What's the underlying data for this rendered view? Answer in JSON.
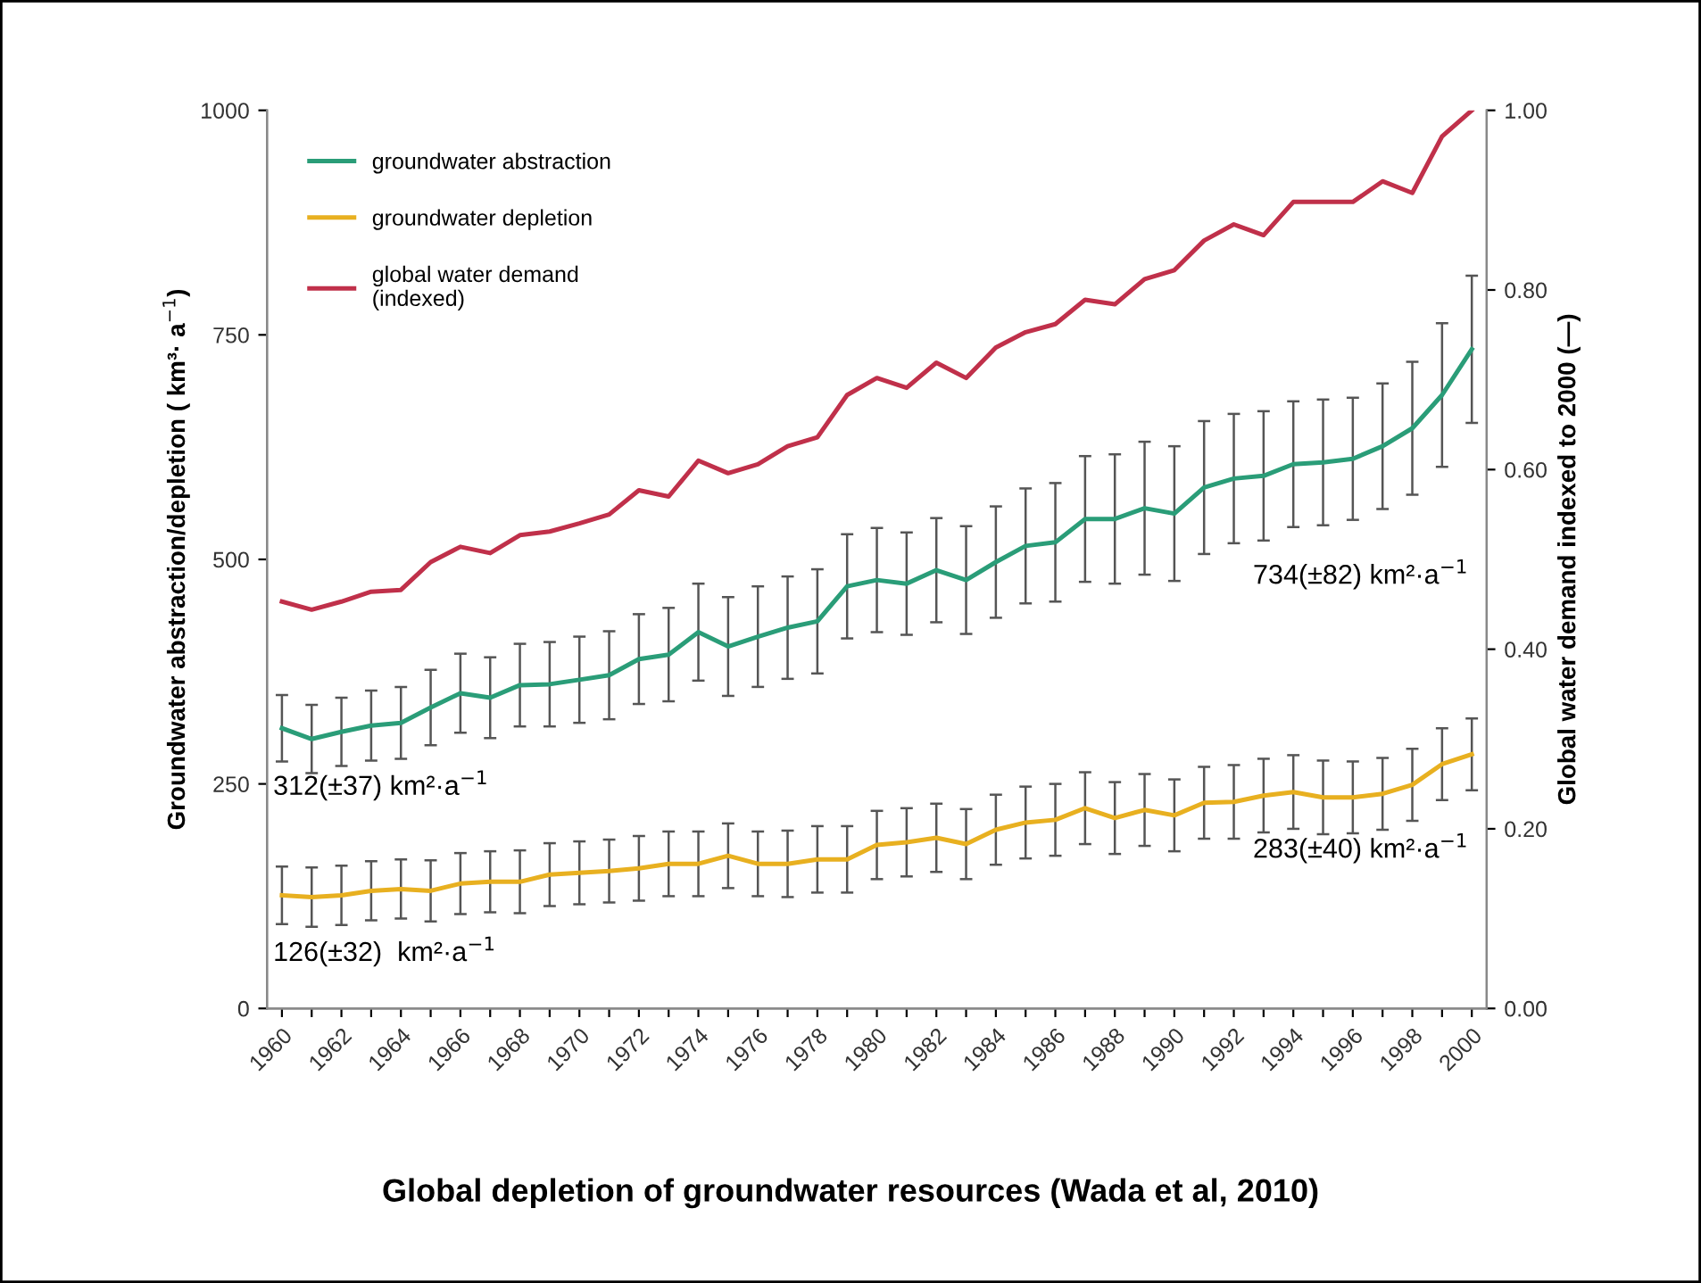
{
  "chart_data": {
    "type": "line",
    "title": "Global depletion of groundwater resources (Wada et al, 2010)",
    "ylabel": "Groundwater abstraction/depletion ( km³· a$^{−1}$)",
    "y2label": "Global water demand indexed to 2000 (—)",
    "x": [
      1960,
      1961,
      1962,
      1963,
      1964,
      1965,
      1966,
      1967,
      1968,
      1969,
      1970,
      1971,
      1972,
      1973,
      1974,
      1975,
      1976,
      1977,
      1978,
      1979,
      1980,
      1981,
      1982,
      1983,
      1984,
      1985,
      1986,
      1987,
      1988,
      1989,
      1990,
      1991,
      1992,
      1993,
      1994,
      1995,
      1996,
      1997,
      1998,
      1999,
      2000
    ],
    "xlim": [
      1959.5,
      2000.5
    ],
    "xticks": [
      1960,
      {
        "value": 1961,
        "label": null
      },
      1962,
      {
        "value": 1963,
        "label": null
      },
      1964,
      {
        "value": 1965,
        "label": null
      },
      1966,
      {
        "value": 1967,
        "label": null
      },
      1968,
      {
        "value": 1969,
        "label": null
      },
      1970,
      {
        "value": 1971,
        "label": null
      },
      1972,
      {
        "value": 1973,
        "label": null
      },
      1974,
      {
        "value": 1975,
        "label": null
      },
      1976,
      {
        "value": 1977,
        "label": null
      },
      1978,
      {
        "value": 1979,
        "label": null
      },
      1980,
      {
        "value": 1981,
        "label": null
      },
      1982,
      {
        "value": 1983,
        "label": null
      },
      1984,
      {
        "value": 1985,
        "label": null
      },
      1986,
      {
        "value": 1987,
        "label": null
      },
      1988,
      {
        "value": 1989,
        "label": null
      },
      1990,
      {
        "value": 1991,
        "label": null
      },
      1992,
      {
        "value": 1993,
        "label": null
      },
      1994,
      {
        "value": 1995,
        "label": null
      },
      1996,
      {
        "value": 1997,
        "label": null
      },
      1998,
      {
        "value": 1999,
        "label": null
      },
      2000
    ],
    "ylim": [
      0,
      1000
    ],
    "yticks": [
      0,
      250,
      500,
      750,
      1000
    ],
    "y2lim": [
      0,
      1
    ],
    "y2ticks": [
      {
        "value": 0,
        "label": "0.00"
      },
      {
        "value": 0.2,
        "label": "0.20"
      },
      {
        "value": 0.4,
        "label": "0.40"
      },
      {
        "value": 0.6,
        "label": "0.60"
      },
      {
        "value": 0.8,
        "label": "0.80"
      },
      {
        "value": 1,
        "label": "1.00"
      }
    ],
    "grid": false,
    "legend": "top left",
    "marker": "none",
    "line_style": "solid",
    "series": [
      {
        "name": "groundwater abstraction",
        "color": "#2a9d78",
        "values": [
          312,
          300,
          308,
          315,
          318,
          335,
          351,
          346,
          360,
          361,
          366,
          371,
          389,
          394,
          419,
          403,
          414,
          424,
          431,
          470,
          477,
          473,
          488,
          477,
          497,
          515,
          519,
          545,
          545,
          557,
          551,
          580,
          590,
          593,
          606,
          608,
          612,
          626,
          646,
          683,
          734
        ],
        "errors": [
          37,
          38,
          38,
          39,
          40,
          42,
          44,
          45,
          46,
          47,
          48,
          49,
          50,
          52,
          54,
          55,
          56,
          57,
          58,
          58,
          58,
          57,
          58,
          60,
          62,
          64,
          66,
          70,
          72,
          74,
          75,
          74,
          72,
          72,
          70,
          70,
          68,
          70,
          74,
          80,
          82
        ]
      },
      {
        "name": "groundwater depletion",
        "color": "#e8b020",
        "values": [
          126,
          124,
          126,
          131,
          133,
          131,
          139,
          141,
          141,
          149,
          151,
          153,
          156,
          161,
          161,
          170,
          161,
          161,
          166,
          166,
          182,
          185,
          190,
          183,
          199,
          207,
          210,
          223,
          212,
          221,
          215,
          229,
          230,
          237,
          241,
          235,
          235,
          239,
          249,
          272,
          283
        ],
        "errors": [
          32,
          33,
          33,
          33,
          33,
          34,
          34,
          34,
          35,
          35,
          35,
          35,
          36,
          36,
          36,
          36,
          36,
          37,
          37,
          37,
          38,
          38,
          38,
          39,
          39,
          40,
          40,
          40,
          40,
          40,
          40,
          40,
          41,
          41,
          41,
          41,
          40,
          40,
          40,
          40,
          40
        ]
      },
      {
        "name": "global water demand\n(indexed)",
        "color": "#c0304a",
        "axis": "y2",
        "values": [
          0.453,
          0.444,
          0.453,
          0.464,
          0.466,
          0.497,
          0.514,
          0.507,
          0.527,
          0.531,
          0.54,
          0.55,
          0.577,
          0.57,
          0.61,
          0.596,
          0.606,
          0.626,
          0.636,
          0.683,
          0.702,
          0.691,
          0.719,
          0.702,
          0.736,
          0.753,
          0.762,
          0.789,
          0.784,
          0.812,
          0.822,
          0.855,
          0.873,
          0.861,
          0.898,
          0.898,
          0.898,
          0.921,
          0.908,
          0.971,
          1.0
        ]
      }
    ],
    "annotations": [
      "312(±37) km²·a$^{−1}$",
      "126(±32)  km²·a$^{−1}$",
      "734(±82) km²·a$^{−1}$",
      "283(±40) km²·a$^{−1}$"
    ]
  }
}
